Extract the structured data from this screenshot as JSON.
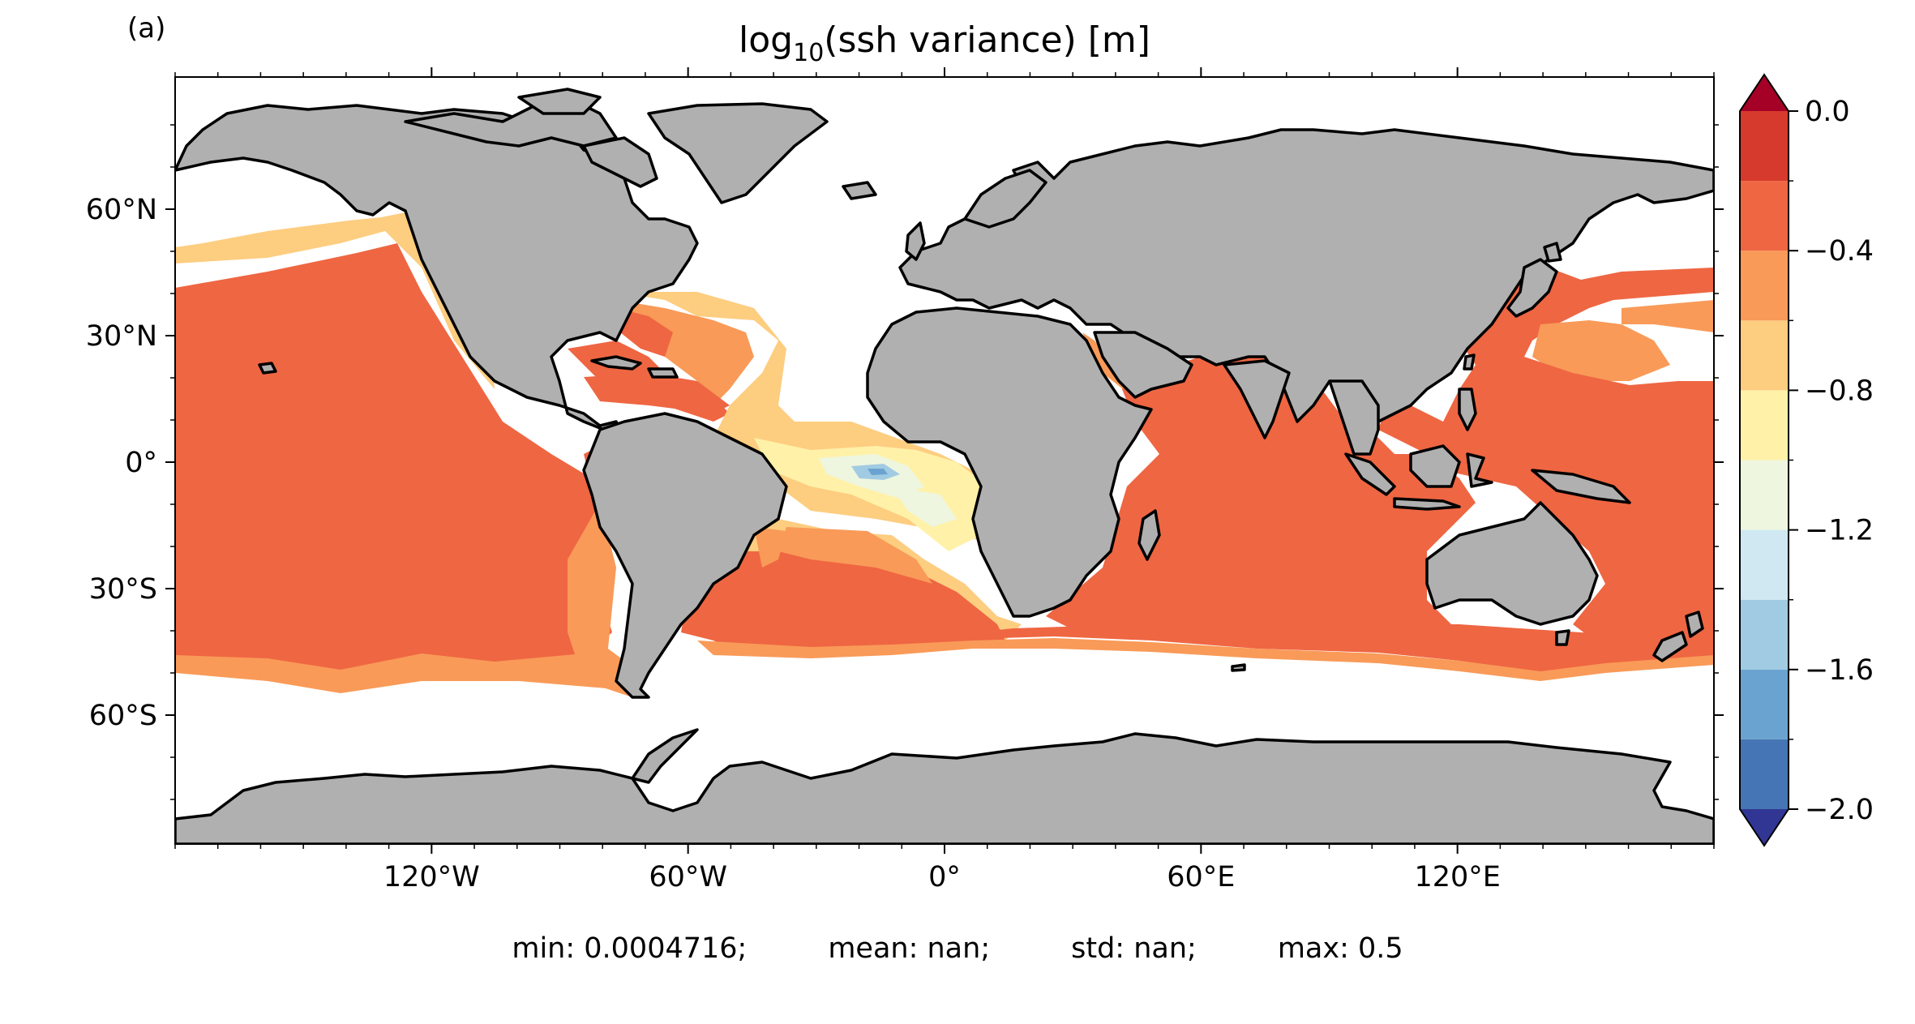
{
  "panel_label": "(a)",
  "title": {
    "prefix": "log",
    "subscript": "10",
    "suffix": "(ssh variance) [m]"
  },
  "map": {
    "projection": "PlateCarree",
    "land_color": "#b0b0b0",
    "coastline_color": "#000000",
    "ocean_missing_color": "#ffffff",
    "lon_ticks": [
      "120°W",
      "60°W",
      "0°",
      "60°E",
      "120°E"
    ],
    "lat_ticks": [
      "60°N",
      "30°N",
      "0°",
      "30°S",
      "60°S"
    ]
  },
  "colorbar": {
    "range": [
      -2.0,
      0.0
    ],
    "extend": "both",
    "tick_labels": [
      "0.0",
      "−0.4",
      "−0.8",
      "−1.2",
      "−1.6",
      "−2.0"
    ],
    "levels": [
      {
        "from": -2.0,
        "to": -1.8,
        "color": "#4575b4"
      },
      {
        "from": -1.8,
        "to": -1.6,
        "color": "#6ba3d0"
      },
      {
        "from": -1.6,
        "to": -1.4,
        "color": "#a0cbe2"
      },
      {
        "from": -1.4,
        "to": -1.2,
        "color": "#cfe8f2"
      },
      {
        "from": -1.2,
        "to": -1.0,
        "color": "#eef6df"
      },
      {
        "from": -1.0,
        "to": -0.8,
        "color": "#fff1a8"
      },
      {
        "from": -0.8,
        "to": -0.6,
        "color": "#fdcd80"
      },
      {
        "from": -0.6,
        "to": -0.4,
        "color": "#f99a58"
      },
      {
        "from": -0.4,
        "to": -0.2,
        "color": "#ef6642"
      },
      {
        "from": -0.2,
        "to": 0.0,
        "color": "#d63a2c"
      }
    ],
    "under_color": "#313695",
    "over_color": "#a50026"
  },
  "stats": {
    "min": "min: 0.0004716;",
    "mean": "mean: nan;",
    "std": "std: nan;",
    "max": "max: 0.5"
  }
}
